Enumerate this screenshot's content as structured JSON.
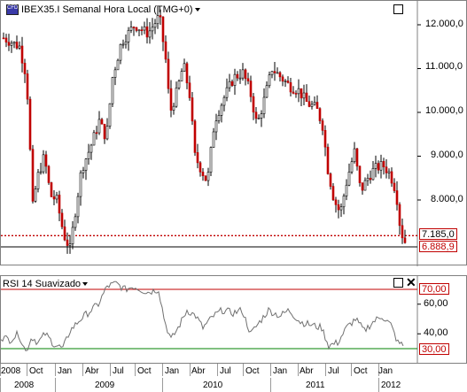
{
  "window": {
    "title": "IBEX35.I Semanal Hora Local (TMG+0)",
    "icon_text": "CFD",
    "icon_name": "cfd-icon"
  },
  "price_axis": {
    "labels": [
      "12.000,0",
      "11.000,0",
      "10.000,0",
      "9.000,0",
      "8.000,0"
    ],
    "values": [
      12000,
      11000,
      10000,
      9000,
      8000
    ],
    "range": [
      6600,
      12500
    ]
  },
  "price_tags": {
    "level": "7.185,0",
    "level_value": 7185,
    "last": "6.888,9",
    "last_value": 6888.9
  },
  "rsi": {
    "title": "RSI 14 Suavizado",
    "labels": [
      "70,00",
      "60,00",
      "40,00",
      "30,00"
    ],
    "values": [
      70,
      60,
      40,
      30
    ],
    "range": [
      20,
      77
    ]
  },
  "time_axis": {
    "months": [
      "2008",
      "Oct",
      "Jan",
      "Abr",
      "Jul",
      "Oct",
      "Jan",
      "Abr",
      "Jul",
      "Oct",
      "Jan",
      "Abr",
      "Jul",
      "Oct",
      "Jan"
    ],
    "years": [
      "2008",
      "2009",
      "2010",
      "2011",
      "2012"
    ]
  },
  "colors": {
    "candle_up": "#000000",
    "candle_down": "#c00000",
    "level_line": "#c00000",
    "rsi_line": "#707070",
    "rsi_upper": "#c00000",
    "rsi_lower": "#008000"
  }
}
